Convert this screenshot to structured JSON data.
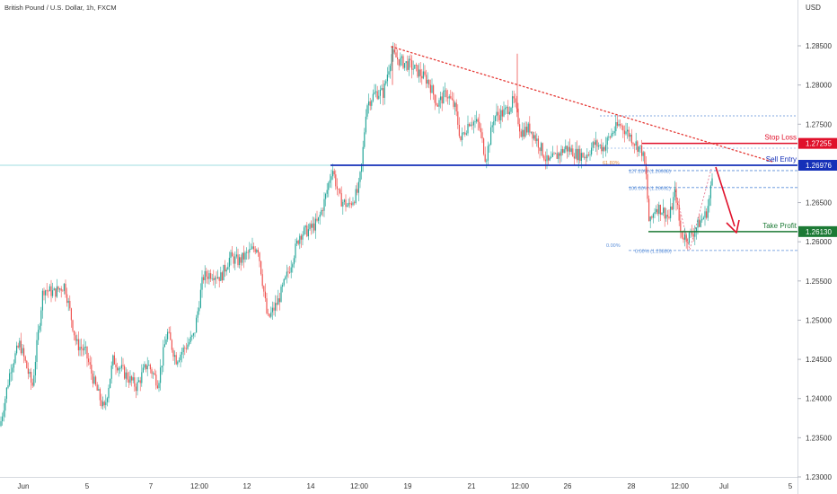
{
  "header": {
    "symbol": "British Pound / U.S. Dollar, 1h, FXCM",
    "currency": "USD"
  },
  "chart_data": {
    "type": "candlestick",
    "y_range": [
      1.23,
      1.29
    ],
    "y_ticks": [
      1.23,
      1.235,
      1.24,
      1.245,
      1.25,
      1.255,
      1.26,
      1.265,
      1.27,
      1.275,
      1.28,
      1.285
    ],
    "x_ticks": [
      "Jun",
      "5",
      "7",
      "12:00",
      "12",
      "14",
      "12:00",
      "19",
      "21",
      "12:00",
      "26",
      "28",
      "12:00",
      "Jul",
      "5"
    ],
    "path_points": [
      [
        0,
        1.2365
      ],
      [
        12,
        1.244
      ],
      [
        22,
        1.247
      ],
      [
        36,
        1.2415
      ],
      [
        48,
        1.254
      ],
      [
        60,
        1.2535
      ],
      [
        72,
        1.2545
      ],
      [
        85,
        1.247
      ],
      [
        95,
        1.246
      ],
      [
        105,
        1.242
      ],
      [
        116,
        1.2385
      ],
      [
        126,
        1.245
      ],
      [
        140,
        1.243
      ],
      [
        152,
        1.2415
      ],
      [
        164,
        1.2445
      ],
      [
        176,
        1.242
      ],
      [
        186,
        1.2485
      ],
      [
        196,
        1.245
      ],
      [
        206,
        1.2465
      ],
      [
        216,
        1.248
      ],
      [
        226,
        1.2555
      ],
      [
        236,
        1.256
      ],
      [
        246,
        1.2555
      ],
      [
        256,
        1.258
      ],
      [
        266,
        1.2575
      ],
      [
        276,
        1.2585
      ],
      [
        287,
        1.2595
      ],
      [
        298,
        1.25
      ],
      [
        310,
        1.2525
      ],
      [
        322,
        1.2565
      ],
      [
        334,
        1.261
      ],
      [
        344,
        1.2615
      ],
      [
        354,
        1.2625
      ],
      [
        362,
        1.2655
      ],
      [
        370,
        1.2695
      ],
      [
        378,
        1.2655
      ],
      [
        388,
        1.2645
      ],
      [
        399,
        1.2665
      ],
      [
        403,
        1.27
      ],
      [
        408,
        1.2775
      ],
      [
        418,
        1.279
      ],
      [
        427,
        1.279
      ],
      [
        436,
        1.284
      ],
      [
        446,
        1.283
      ],
      [
        457,
        1.2825
      ],
      [
        467,
        1.2815
      ],
      [
        477,
        1.2805
      ],
      [
        487,
        1.2775
      ],
      [
        497,
        1.279
      ],
      [
        507,
        1.277
      ],
      [
        513,
        1.273
      ],
      [
        523,
        1.2755
      ],
      [
        533,
        1.275
      ],
      [
        541,
        1.2705
      ],
      [
        550,
        1.276
      ],
      [
        562,
        1.2765
      ],
      [
        572,
        1.278
      ],
      [
        580,
        1.274
      ],
      [
        590,
        1.2745
      ],
      [
        600,
        1.2725
      ],
      [
        610,
        1.27
      ],
      [
        620,
        1.271
      ],
      [
        630,
        1.272
      ],
      [
        642,
        1.2712
      ],
      [
        652,
        1.271
      ],
      [
        662,
        1.2725
      ],
      [
        672,
        1.272
      ],
      [
        682,
        1.274
      ],
      [
        690,
        1.275
      ],
      [
        700,
        1.2738
      ],
      [
        708,
        1.2725
      ],
      [
        715,
        1.2715
      ],
      [
        719,
        1.269
      ],
      [
        723,
        1.262
      ],
      [
        730,
        1.2645
      ],
      [
        738,
        1.264
      ],
      [
        745,
        1.263
      ],
      [
        752,
        1.2665
      ],
      [
        758,
        1.261
      ],
      [
        765,
        1.2605
      ],
      [
        772,
        1.2612
      ],
      [
        779,
        1.2625
      ],
      [
        786,
        1.2635
      ],
      [
        790,
        1.2655
      ],
      [
        794,
        1.269
      ]
    ],
    "spikes": [
      [
        576,
        1.284,
        1.2765
      ],
      [
        437,
        1.285,
        1.28
      ]
    ],
    "levels": {
      "sell_entry": 1.26976,
      "stop_loss": 1.27255,
      "take_profit": 1.2613
    },
    "fib_levels": [
      {
        "label": "127.20% (1.26908)",
        "value": 1.26908
      },
      {
        "label": "100.00% (1.26692)",
        "value": 1.26692
      },
      {
        "label": "0.00% (1.25889)",
        "value": 1.25889
      }
    ],
    "fib_other_labels": [
      "61.80%",
      "0.00%"
    ],
    "annotations": [
      "Stop Loss",
      "Sell Entry",
      "Take Profit"
    ],
    "colors": {
      "up": "#26a69a",
      "down": "#ef5350",
      "sell_entry": "#1530b8",
      "stop_loss": "#e0102a",
      "take_profit": "#1c7a35",
      "trendline": "#e53935",
      "fib": "#5b8fd9",
      "hline": "#7fd0d8"
    }
  }
}
